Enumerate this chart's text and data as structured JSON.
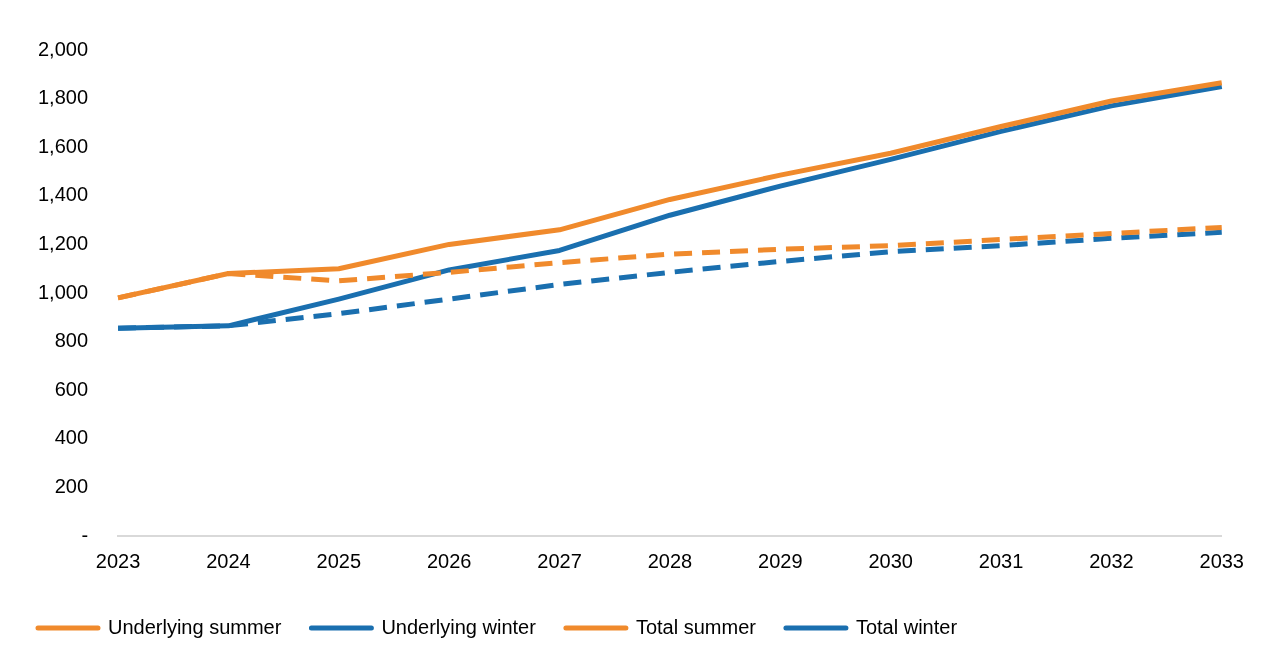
{
  "chart_data": {
    "type": "line",
    "categories": [
      "2023",
      "2024",
      "2025",
      "2026",
      "2027",
      "2028",
      "2029",
      "2030",
      "2031",
      "2032",
      "2033"
    ],
    "series": [
      {
        "name": "Underlying summer",
        "color": "#f08a2c",
        "line_style": "dashed",
        "values": [
          980,
          1080,
          1050,
          1085,
          1125,
          1160,
          1180,
          1195,
          1220,
          1245,
          1270
        ]
      },
      {
        "name": "Underlying winter",
        "color": "#1a6faf",
        "line_style": "dashed",
        "values": [
          855,
          865,
          915,
          975,
          1035,
          1085,
          1130,
          1170,
          1195,
          1225,
          1250
        ]
      },
      {
        "name": "Total summer",
        "color": "#f08a2c",
        "line_style": "solid",
        "values": [
          980,
          1080,
          1100,
          1200,
          1260,
          1385,
          1485,
          1575,
          1685,
          1790,
          1865
        ]
      },
      {
        "name": "Total winter",
        "color": "#1a6faf",
        "line_style": "solid",
        "values": [
          855,
          865,
          975,
          1095,
          1175,
          1320,
          1440,
          1550,
          1665,
          1770,
          1850
        ]
      }
    ],
    "ylim": [
      0,
      2000
    ],
    "yticks": [
      {
        "value": 0,
        "label": "-"
      },
      200,
      400,
      600,
      800,
      {
        "value": 1000,
        "label": "1,000"
      },
      {
        "value": 1200,
        "label": "1,200"
      },
      {
        "value": 1400,
        "label": "1,400"
      },
      {
        "value": 1600,
        "label": "1,600"
      },
      {
        "value": 1800,
        "label": "1,800"
      },
      {
        "value": 2000,
        "label": "2,000"
      }
    ],
    "grid": false,
    "legend": "bottom",
    "marker": "none"
  }
}
